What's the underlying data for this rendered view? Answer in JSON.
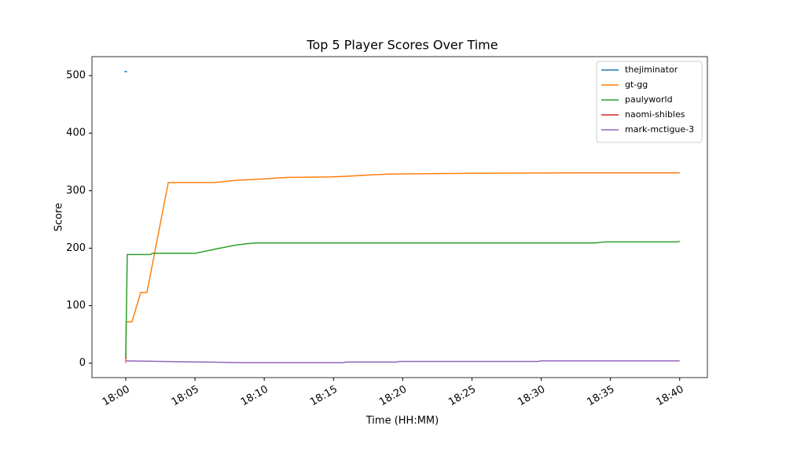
{
  "chart_data": {
    "type": "line",
    "title": "Top 5 Player Scores Over Time",
    "x_label": "Time (HH:MM)",
    "y_label": "Score",
    "xlim": [
      1077.56,
      1122
    ],
    "ylim": [
      -25,
      533
    ],
    "xticks": [
      {
        "value": 1080,
        "label": "18:00"
      },
      {
        "value": 1085,
        "label": "18:05"
      },
      {
        "value": 1090,
        "label": "18:10"
      },
      {
        "value": 1095,
        "label": "18:15"
      },
      {
        "value": 1100,
        "label": "18:20"
      },
      {
        "value": 1105,
        "label": "18:25"
      },
      {
        "value": 1110,
        "label": "18:30"
      },
      {
        "value": 1115,
        "label": "18:35"
      },
      {
        "value": 1120,
        "label": "18:40"
      }
    ],
    "yticks": [
      0,
      100,
      200,
      300,
      400,
      500
    ],
    "legend": "upper right",
    "series": [
      {
        "name": "thejiminator",
        "color": "#1f77b4",
        "x": [
          1079.9,
          1080.1
        ],
        "values": [
          507,
          507
        ]
      },
      {
        "name": "gt-gg",
        "color": "#ff7f0e",
        "x": [
          1080,
          1080.03,
          1080.45,
          1081.08,
          1081.53,
          1083.07,
          1086.36,
          1087.95,
          1089.66,
          1091.65,
          1094.77,
          1095.9,
          1098.18,
          1099.3,
          1104.15,
          1112.4,
          1120
        ],
        "values": [
          0,
          72,
          72,
          123,
          123,
          314,
          314,
          318,
          320,
          323,
          324,
          325,
          328,
          329,
          330,
          331,
          331
        ]
      },
      {
        "name": "paulyworld",
        "color": "#2ca02c",
        "x": [
          1080,
          1080.11,
          1081.82,
          1081.9,
          1085,
          1085.8,
          1086.8,
          1087.84,
          1088.8,
          1089.43,
          1113.8,
          1114.7,
          1119.8,
          1120
        ],
        "values": [
          10,
          189,
          189,
          191,
          191,
          195,
          200,
          205,
          208,
          209,
          209,
          211,
          211,
          212
        ]
      },
      {
        "name": "naomi-shibles",
        "color": "#d62728",
        "x": [
          1080,
          1080.05
        ],
        "values": [
          10,
          8
        ]
      },
      {
        "name": "mark-mctigue-3",
        "color": "#9467bd",
        "x": [
          1080,
          1088.5,
          1095.7,
          1095.9,
          1099.6,
          1099.7,
          1109.8,
          1109.95,
          1120
        ],
        "values": [
          4,
          1,
          1,
          2,
          2,
          3,
          3,
          4,
          4
        ]
      }
    ]
  }
}
